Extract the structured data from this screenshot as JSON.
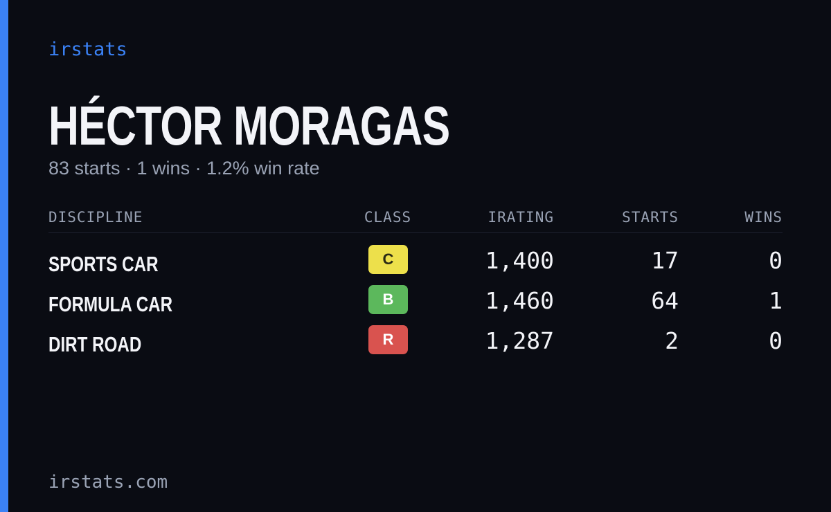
{
  "brand": "irstats",
  "driver": {
    "name": "HÉCTOR MORAGAS",
    "summary": "83 starts · 1 wins · 1.2% win rate"
  },
  "table": {
    "headers": [
      "DISCIPLINE",
      "CLASS",
      "IRATING",
      "STARTS",
      "WINS"
    ],
    "rows": [
      {
        "discipline": "SPORTS CAR",
        "class": "C",
        "class_color": "#ede04b",
        "irating": "1,400",
        "starts": "17",
        "wins": "0"
      },
      {
        "discipline": "FORMULA CAR",
        "class": "B",
        "class_color": "#5cb85c",
        "irating": "1,460",
        "starts": "64",
        "wins": "1"
      },
      {
        "discipline": "DIRT ROAD",
        "class": "R",
        "class_color": "#d9534f",
        "irating": "1,287",
        "starts": "2",
        "wins": "0"
      }
    ]
  },
  "footer": "irstats.com"
}
